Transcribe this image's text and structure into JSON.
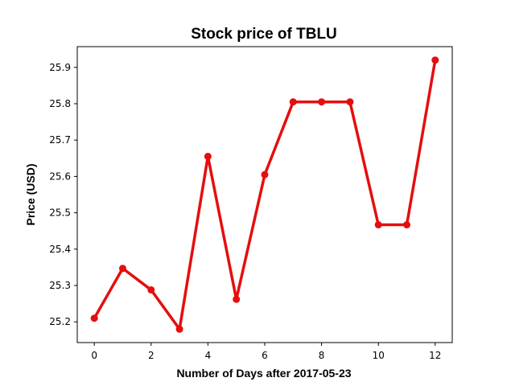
{
  "chart_data": {
    "type": "line",
    "title": "Stock price of TBLU",
    "xlabel": "Number of Days after 2017-05-23",
    "ylabel": "Price (USD)",
    "x": [
      0,
      1,
      2,
      3,
      4,
      5,
      6,
      7,
      8,
      9,
      10,
      11,
      12
    ],
    "series": [
      {
        "values": [
          25.21,
          25.347,
          25.288,
          25.18,
          25.655,
          25.262,
          25.605,
          25.805,
          25.805,
          25.805,
          25.467,
          25.467,
          25.92
        ],
        "color": "#e50e0e",
        "marker": "circle"
      }
    ],
    "xlim": [
      -0.6,
      12.6
    ],
    "ylim": [
      25.143,
      25.957
    ],
    "xticks": [
      0,
      2,
      4,
      6,
      8,
      10,
      12
    ],
    "xtick_labels": [
      "0",
      "2",
      "4",
      "6",
      "8",
      "10",
      "12"
    ],
    "yticks": [
      25.2,
      25.3,
      25.4,
      25.5,
      25.6,
      25.7,
      25.8,
      25.9
    ],
    "ytick_labels": [
      "25.2",
      "25.3",
      "25.4",
      "25.5",
      "25.6",
      "25.7",
      "25.8",
      "25.9"
    ],
    "grid": false,
    "legend": false
  }
}
